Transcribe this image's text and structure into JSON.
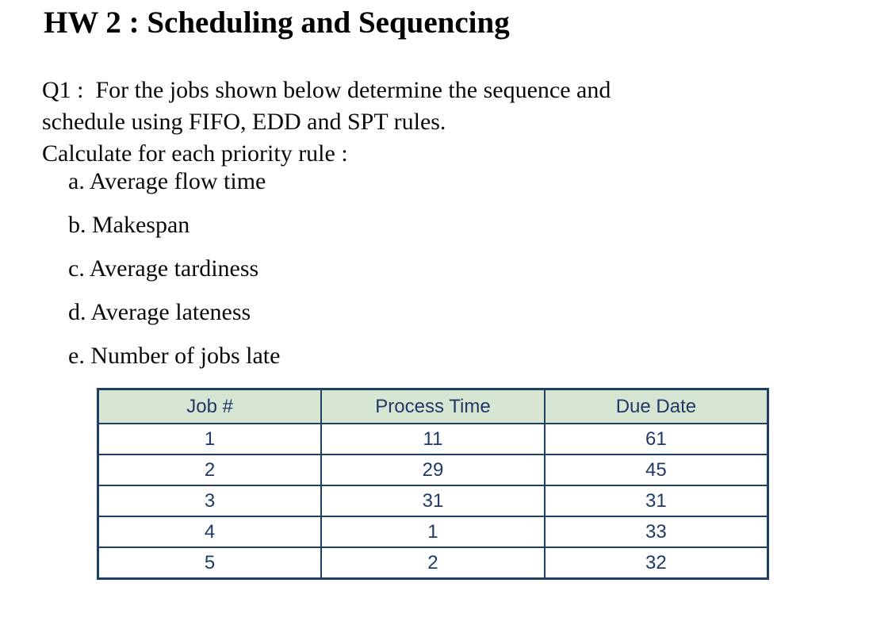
{
  "title": "HW 2 : Scheduling and Sequencing",
  "question": {
    "lines": [
      "Q1 :  For the jobs shown below determine the sequence and",
      "schedule using FIFO, EDD and SPT rules.",
      "Calculate for each priority rule :"
    ]
  },
  "requirements": {
    "items": [
      {
        "label": "a.",
        "text": "Average flow time"
      },
      {
        "label": "b.",
        "text": "Makespan"
      },
      {
        "label": "c.",
        "text": "Average tardiness"
      },
      {
        "label": "d.",
        "text": "Average lateness"
      },
      {
        "label": "e.",
        "text": "Number of jobs late"
      }
    ]
  },
  "table": {
    "headers": [
      "Job #",
      "Process Time",
      "Due Date"
    ],
    "rows": [
      [
        "1",
        "11",
        "61"
      ],
      [
        "2",
        "29",
        "45"
      ],
      [
        "3",
        "31",
        "31"
      ],
      [
        "4",
        "1",
        "33"
      ],
      [
        "5",
        "2",
        "32"
      ]
    ],
    "colors": {
      "header_bg": "#d6e6d2",
      "border": "#1f3f63",
      "text": "#1f3a68"
    }
  }
}
